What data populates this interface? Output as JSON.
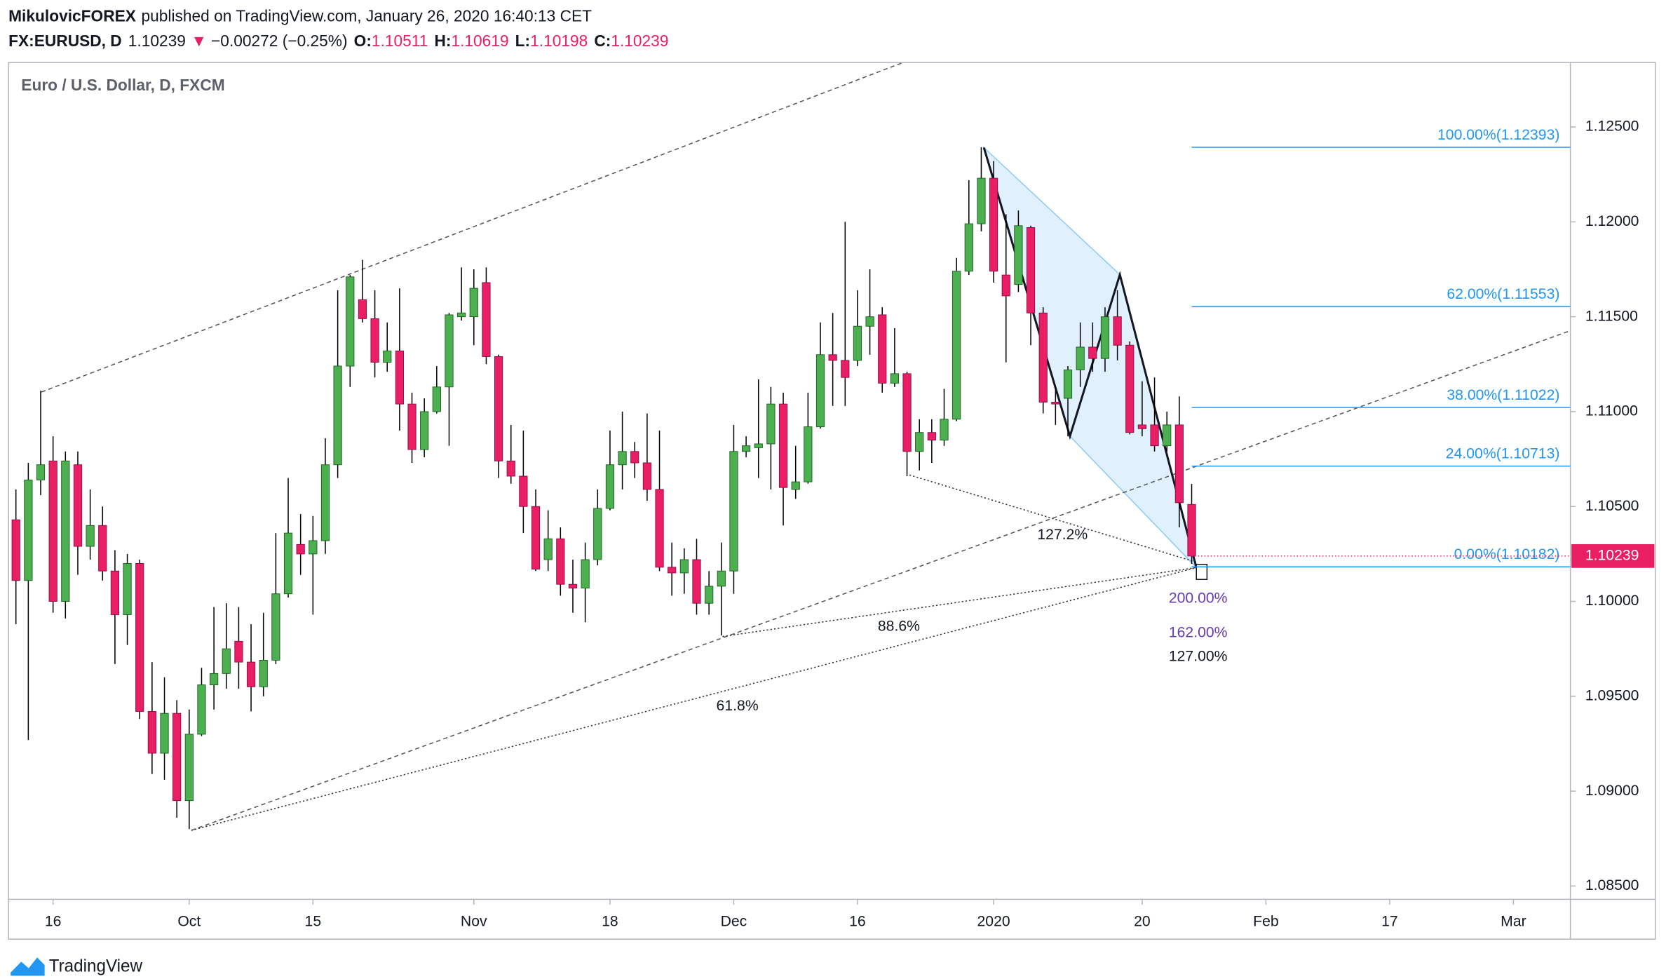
{
  "header": {
    "author": "MikulovicFOREX",
    "published": "published on TradingView.com, January 26, 2020 16:40:13 CET",
    "symbol": "FX:EURUSD, D",
    "last": "1.10239",
    "arrow": "▼",
    "change": "−0.00272 (−0.25%)",
    "ohlc": [
      {
        "label": "O:",
        "value": "1.10511"
      },
      {
        "label": "H:",
        "value": "1.10619"
      },
      {
        "label": "L:",
        "value": "1.10198"
      },
      {
        "label": "C:",
        "value": "1.10239"
      }
    ]
  },
  "chart_data": {
    "type": "candlestick",
    "title": "Euro / U.S. Dollar, D, FXCM",
    "up_color": "#4caf50",
    "down_color": "#e91e63",
    "wick_color": "#000000",
    "grid": false,
    "open": [
      1.1043,
      1.1011,
      1.1064,
      1.1074,
      1.1,
      1.1072,
      1.1029,
      1.104,
      1.1016,
      1.0993,
      1.102,
      1.0942,
      1.092,
      1.0941,
      1.0895,
      1.093,
      1.0956,
      1.0962,
      1.0979,
      1.0968,
      1.0955,
      1.0969,
      1.1004,
      1.103,
      1.1025,
      1.1032,
      1.1072,
      1.1124,
      1.1159,
      1.1149,
      1.1126,
      1.1132,
      1.1104,
      1.108,
      1.11,
      1.1113,
      1.115,
      1.115,
      1.1168,
      1.1129,
      1.1074,
      1.1066,
      1.105,
      1.1022,
      1.1033,
      1.1009,
      1.1007,
      1.1022,
      1.1049,
      1.1072,
      1.1079,
      1.1073,
      1.1059,
      1.1018,
      1.1015,
      1.1022,
      1.0999,
      1.1008,
      1.1016,
      1.1079,
      1.1081,
      1.1083,
      1.1104,
      1.1059,
      1.1063,
      1.1092,
      1.113,
      1.1127,
      1.1127,
      1.1145,
      1.1151,
      1.1115,
      1.112,
      1.1079,
      1.1089,
      1.1085,
      1.1096,
      1.1174,
      1.1199,
      1.1223,
      1.1172,
      1.1167,
      1.1197,
      1.1152,
      1.1105,
      1.1107,
      1.1122,
      1.1134,
      1.1128,
      1.115,
      1.1135,
      1.1093,
      1.1093,
      1.1082,
      1.1093,
      1.10511
    ],
    "high": [
      1.1059,
      1.1073,
      1.1111,
      1.1087,
      1.1079,
      1.1079,
      1.1059,
      1.105,
      1.1027,
      1.1025,
      1.1022,
      1.0968,
      1.096,
      1.0948,
      1.0943,
      1.0965,
      1.0997,
      1.0999,
      1.0997,
      1.0988,
      1.0994,
      1.1036,
      1.1065,
      1.1046,
      1.1045,
      1.1086,
      1.1164,
      1.1172,
      1.118,
      1.1164,
      1.1147,
      1.1165,
      1.111,
      1.1107,
      1.1124,
      1.1152,
      1.1176,
      1.1175,
      1.1176,
      1.113,
      1.1093,
      1.109,
      1.1059,
      1.1048,
      1.1039,
      1.1022,
      1.1031,
      1.1059,
      1.109,
      1.11,
      1.1084,
      1.1099,
      1.109,
      1.1031,
      1.1028,
      1.1033,
      1.1016,
      1.1031,
      1.1093,
      1.1087,
      1.1117,
      1.1113,
      1.111,
      1.1082,
      1.111,
      1.1147,
      1.1152,
      1.12,
      1.1164,
      1.1175,
      1.1155,
      1.1144,
      1.1121,
      1.1096,
      1.1096,
      1.1112,
      1.1181,
      1.1222,
      1.12393,
      1.1232,
      1.1204,
      1.1206,
      1.1198,
      1.1155,
      1.1113,
      1.1124,
      1.1147,
      1.1147,
      1.1155,
      1.1164,
      1.1137,
      1.1116,
      1.1118,
      1.11,
      1.1108,
      1.10619
    ],
    "low": [
      1.0988,
      1.0927,
      1.1056,
      1.0994,
      1.0991,
      1.1014,
      1.1022,
      1.1011,
      1.0967,
      1.0977,
      1.0938,
      1.0909,
      1.0906,
      1.0886,
      1.088,
      1.0929,
      1.0943,
      1.0954,
      1.0954,
      1.0942,
      1.095,
      1.0967,
      1.1002,
      1.1014,
      1.0993,
      1.1025,
      1.1065,
      1.1113,
      1.1147,
      1.1118,
      1.1121,
      1.109,
      1.1073,
      1.1076,
      1.1099,
      1.1082,
      1.1148,
      1.1135,
      1.1125,
      1.1065,
      1.1062,
      1.1036,
      1.1016,
      1.1016,
      1.1003,
      1.0994,
      1.0989,
      1.1019,
      1.1048,
      1.1059,
      1.1065,
      1.1053,
      1.1016,
      1.1003,
      1.1004,
      1.0993,
      1.0993,
      1.0982,
      1.1004,
      1.1076,
      1.1065,
      1.1059,
      1.104,
      1.1054,
      1.1062,
      1.1091,
      1.1103,
      1.1103,
      1.1124,
      1.113,
      1.111,
      1.1113,
      1.1066,
      1.1069,
      1.1073,
      1.1082,
      1.1095,
      1.1172,
      1.1195,
      1.1168,
      1.1126,
      1.1163,
      1.1135,
      1.1099,
      1.1093,
      1.1087,
      1.1113,
      1.1121,
      1.1121,
      1.1127,
      1.1088,
      1.1087,
      1.1079,
      1.1079,
      1.1039,
      1.10198
    ],
    "close": [
      1.1011,
      1.1064,
      1.1072,
      1.1,
      1.1074,
      1.1029,
      1.104,
      1.1016,
      1.0993,
      1.102,
      1.0942,
      1.092,
      1.0941,
      1.0895,
      1.093,
      1.0956,
      1.0962,
      1.0975,
      1.0968,
      1.0955,
      1.0969,
      1.1004,
      1.1036,
      1.1025,
      1.1032,
      1.1072,
      1.1124,
      1.1171,
      1.1149,
      1.1126,
      1.1132,
      1.1104,
      1.108,
      1.11,
      1.1113,
      1.1151,
      1.1152,
      1.1165,
      1.1129,
      1.1074,
      1.1066,
      1.105,
      1.1017,
      1.1033,
      1.1009,
      1.1007,
      1.1022,
      1.1049,
      1.1072,
      1.1079,
      1.1073,
      1.1059,
      1.1018,
      1.1015,
      1.1022,
      1.0999,
      1.1008,
      1.1016,
      1.1079,
      1.1082,
      1.1083,
      1.1104,
      1.106,
      1.1063,
      1.1092,
      1.113,
      1.1127,
      1.1118,
      1.1145,
      1.115,
      1.1115,
      1.112,
      1.1079,
      1.1089,
      1.1085,
      1.1096,
      1.1174,
      1.1199,
      1.1223,
      1.1174,
      1.1161,
      1.1198,
      1.1152,
      1.1105,
      1.1104,
      1.1122,
      1.1134,
      1.1128,
      1.115,
      1.1135,
      1.1089,
      1.1091,
      1.1082,
      1.1093,
      1.1052,
      1.10239
    ],
    "xlim": [
      -0.6,
      125.6
    ],
    "xticks": [
      {
        "value": 3,
        "label": "16"
      },
      {
        "value": 14,
        "label": "Oct"
      },
      {
        "value": 24,
        "label": "15"
      },
      {
        "value": 37,
        "label": "Nov"
      },
      {
        "value": 48,
        "label": "18"
      },
      {
        "value": 58,
        "label": "Dec"
      },
      {
        "value": 68,
        "label": "16"
      },
      {
        "value": 79,
        "label": "2020"
      },
      {
        "value": 91,
        "label": "20"
      },
      {
        "value": 101,
        "label": "Feb"
      },
      {
        "value": 111,
        "label": "17"
      },
      {
        "value": 121,
        "label": "Mar"
      }
    ],
    "ylim": [
      1.0843,
      1.1284
    ],
    "yticks": [
      {
        "value": 1.085,
        "label": "1.08500"
      },
      {
        "value": 1.09,
        "label": "1.09000"
      },
      {
        "value": 1.095,
        "label": "1.09500"
      },
      {
        "value": 1.1,
        "label": "1.10000"
      },
      {
        "value": 1.105,
        "label": "1.10500"
      },
      {
        "value": 1.11,
        "label": "1.11000"
      },
      {
        "value": 1.115,
        "label": "1.11500"
      },
      {
        "value": 1.12,
        "label": "1.12000"
      },
      {
        "value": 1.125,
        "label": "1.12500"
      }
    ],
    "last_price": {
      "value": 1.10239,
      "label": "1.10239"
    },
    "fib_color": "#2196f3",
    "fib_levels": [
      {
        "price": 1.12393,
        "label": "100.00%(1.12393)"
      },
      {
        "price": 1.11553,
        "label": "62.00%(1.11553)"
      },
      {
        "price": 1.11022,
        "label": "38.00%(1.11022)"
      },
      {
        "price": 1.10713,
        "label": "24.00%(1.10713)"
      },
      {
        "price": 1.10182,
        "label": "0.00%(1.10182)"
      }
    ],
    "pattern_labels": [
      "127.2%",
      "88.6%",
      "61.8%",
      "200.00%",
      "162.00%",
      "127.00%"
    ]
  },
  "footer": {
    "brand": "TradingView"
  }
}
